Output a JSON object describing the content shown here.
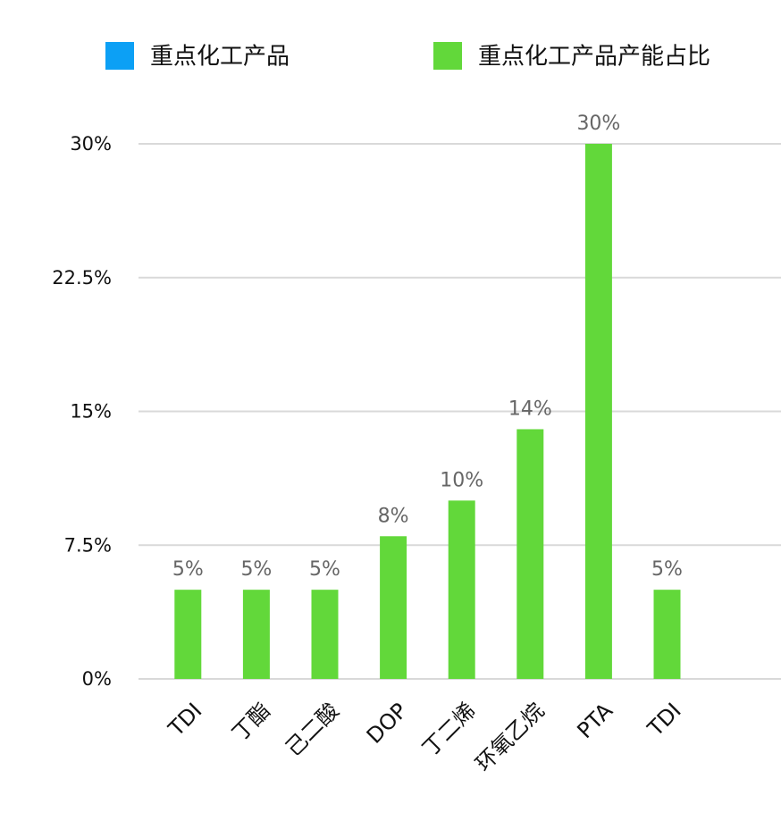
{
  "chart_data": {
    "type": "bar",
    "categories": [
      "TDI",
      "丁酯",
      "己二酸",
      "DOP",
      "丁二烯",
      "环氧乙烷",
      "PTA",
      "TDI"
    ],
    "series": [
      {
        "name": "重点化工产品",
        "color": "#0ca0f5",
        "values": [
          null,
          null,
          null,
          null,
          null,
          null,
          null,
          null
        ]
      },
      {
        "name": "重点化工产品产能占比",
        "color": "#62d83a",
        "values": [
          5,
          5,
          5,
          8,
          10,
          14,
          30,
          5
        ],
        "value_labels": [
          "5%",
          "5%",
          "5%",
          "8%",
          "10%",
          "14%",
          "30%",
          "5%"
        ]
      }
    ],
    "ylim": [
      0,
      30
    ],
    "yticks": [
      {
        "value": 0,
        "label": "0%"
      },
      {
        "value": 7.5,
        "label": "7.5%"
      },
      {
        "value": 15,
        "label": "15%"
      },
      {
        "value": 22.5,
        "label": "22.5%"
      },
      {
        "value": 30,
        "label": "30%"
      }
    ],
    "grid": true,
    "legend": "top"
  }
}
